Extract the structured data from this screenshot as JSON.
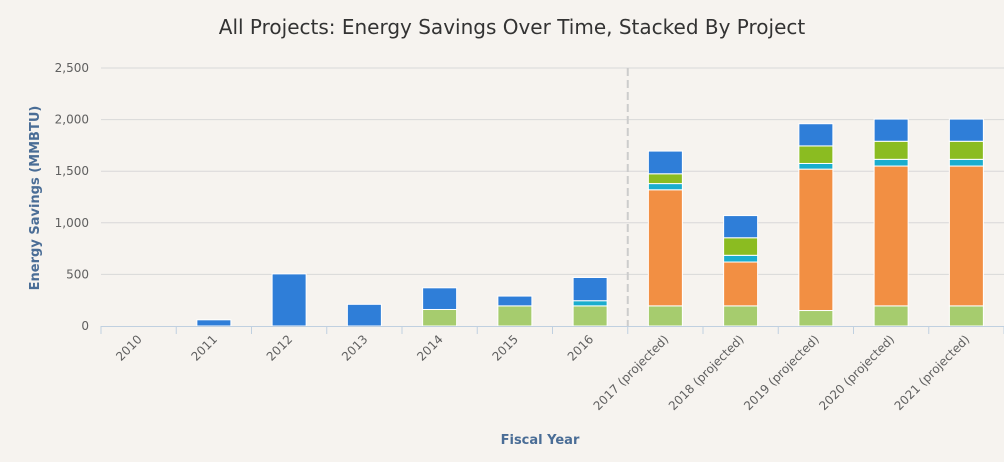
{
  "chart_data": {
    "type": "bar",
    "stacked": true,
    "title": "All Projects: Energy Savings Over Time, Stacked By Project",
    "xlabel": "Fiscal Year",
    "ylabel": "Energy Savings (MMBTU)",
    "ylim": [
      0,
      2500
    ],
    "yticks": [
      0,
      500,
      1000,
      1500,
      2000,
      2500
    ],
    "ytick_labels": [
      "0",
      "500",
      "1,000",
      "1,500",
      "2,000",
      "2,500"
    ],
    "categories": [
      "2010",
      "2011",
      "2012",
      "2013",
      "2014",
      "2015",
      "2016",
      "2017 (projected)",
      "2018 (projected)",
      "2019 (projected)",
      "2020 (projected)",
      "2021 (projected)"
    ],
    "projection_divider_after": "2016",
    "grid": true,
    "legend": "none",
    "series": [
      {
        "color": "#a6cc6e",
        "values": [
          0,
          0,
          0,
          0,
          160,
          195,
          195,
          195,
          195,
          150,
          195,
          195
        ]
      },
      {
        "color": "#f28f43",
        "values": [
          0,
          0,
          0,
          0,
          0,
          0,
          0,
          1125,
          425,
          1370,
          1355,
          1355
        ]
      },
      {
        "color": "#1aadce",
        "values": [
          0,
          0,
          0,
          0,
          0,
          0,
          50,
          60,
          65,
          55,
          65,
          65
        ]
      },
      {
        "color": "#8bbc21",
        "values": [
          0,
          0,
          0,
          0,
          0,
          0,
          0,
          95,
          170,
          170,
          175,
          175
        ]
      },
      {
        "color": "#2f7ed8",
        "values": [
          0,
          60,
          505,
          210,
          210,
          95,
          225,
          220,
          215,
          215,
          215,
          215
        ]
      }
    ]
  }
}
